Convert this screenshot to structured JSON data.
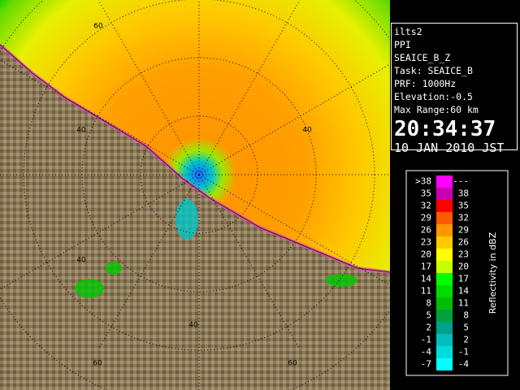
{
  "info": {
    "lines": [
      "ilts2",
      "PPI",
      "SEAICE_B_Z",
      "Task: SEAICE_B",
      "PRF: 1000Hz",
      "Elevation:-0.5",
      "Max Range:60 km"
    ],
    "time": "20:34:37",
    "date": "10 JAN 2010 JST"
  },
  "range_labels": [
    "60",
    "40",
    "40",
    "40",
    "40",
    "60",
    "60"
  ],
  "legend": {
    "title": "Reflectivity in dBZ",
    "rows": [
      {
        "low": ">38",
        "high": "---",
        "color": "#ff00ff"
      },
      {
        "low": "35",
        "high": "38",
        "color": "#c800b4"
      },
      {
        "low": "32",
        "high": "35",
        "color": "#ff0000"
      },
      {
        "low": "29",
        "high": "32",
        "color": "#ff5a00"
      },
      {
        "low": "26",
        "high": "29",
        "color": "#ff9600"
      },
      {
        "low": "23",
        "high": "26",
        "color": "#ffc800"
      },
      {
        "low": "20",
        "high": "23",
        "color": "#ffff00"
      },
      {
        "low": "17",
        "high": "20",
        "color": "#c8ff00"
      },
      {
        "low": "14",
        "high": "17",
        "color": "#00ff00"
      },
      {
        "low": "11",
        "high": "14",
        "color": "#00dc00"
      },
      {
        "low": "8",
        "high": "11",
        "color": "#00be00"
      },
      {
        "low": "5",
        "high": "8",
        "color": "#00a03c"
      },
      {
        "low": "2",
        "high": "5",
        "color": "#00a08c"
      },
      {
        "low": "-1",
        "high": "2",
        "color": "#00bebe"
      },
      {
        "low": "-4",
        "high": "-1",
        "color": "#00dcdc"
      },
      {
        "low": "-7",
        "high": "-4",
        "color": "#00ffff"
      }
    ]
  }
}
